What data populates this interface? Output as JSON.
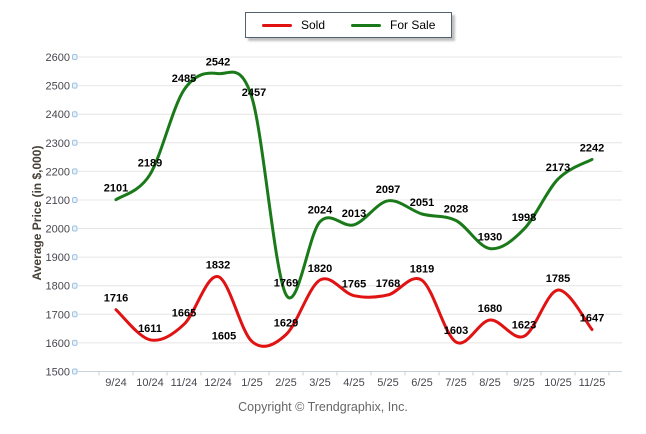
{
  "chart_data": {
    "type": "line",
    "categories": [
      "9/24",
      "10/24",
      "11/24",
      "12/24",
      "1/25",
      "2/25",
      "3/25",
      "4/25",
      "5/25",
      "6/25",
      "7/25",
      "8/25",
      "9/25",
      "10/25",
      "11/25"
    ],
    "series": [
      {
        "name": "Sold",
        "color": "#e01212",
        "values": [
          1716,
          1611,
          1665,
          1832,
          1605,
          1629,
          1820,
          1765,
          1768,
          1819,
          1603,
          1680,
          1623,
          1785,
          1647
        ]
      },
      {
        "name": "For Sale",
        "color": "#1a7a1a",
        "values": [
          2101,
          2189,
          2485,
          2542,
          2457,
          1769,
          2024,
          2013,
          2097,
          2051,
          2028,
          1930,
          1998,
          2173,
          2242
        ]
      }
    ],
    "ylabel": "Average Price (in $,000)",
    "xlabel": "",
    "ylim": [
      1500,
      2600
    ],
    "ytick_step": 100,
    "grid": true,
    "smooth": true,
    "data_labels": true,
    "legend_position": "top-center"
  },
  "footer": {
    "copyright": "Copyright © Trendgraphix, Inc."
  },
  "theme": {
    "background": "#ffffff",
    "gridline": "#e8e4e4",
    "axis_line": "#c9d1d9",
    "y_tick_mark": "#9dc3e6",
    "axis_text": "#47474f",
    "data_label_text": "#000000",
    "y_axis_title_text": "#474038",
    "copyright_text": "#666666",
    "legend_border": "#52616f"
  }
}
